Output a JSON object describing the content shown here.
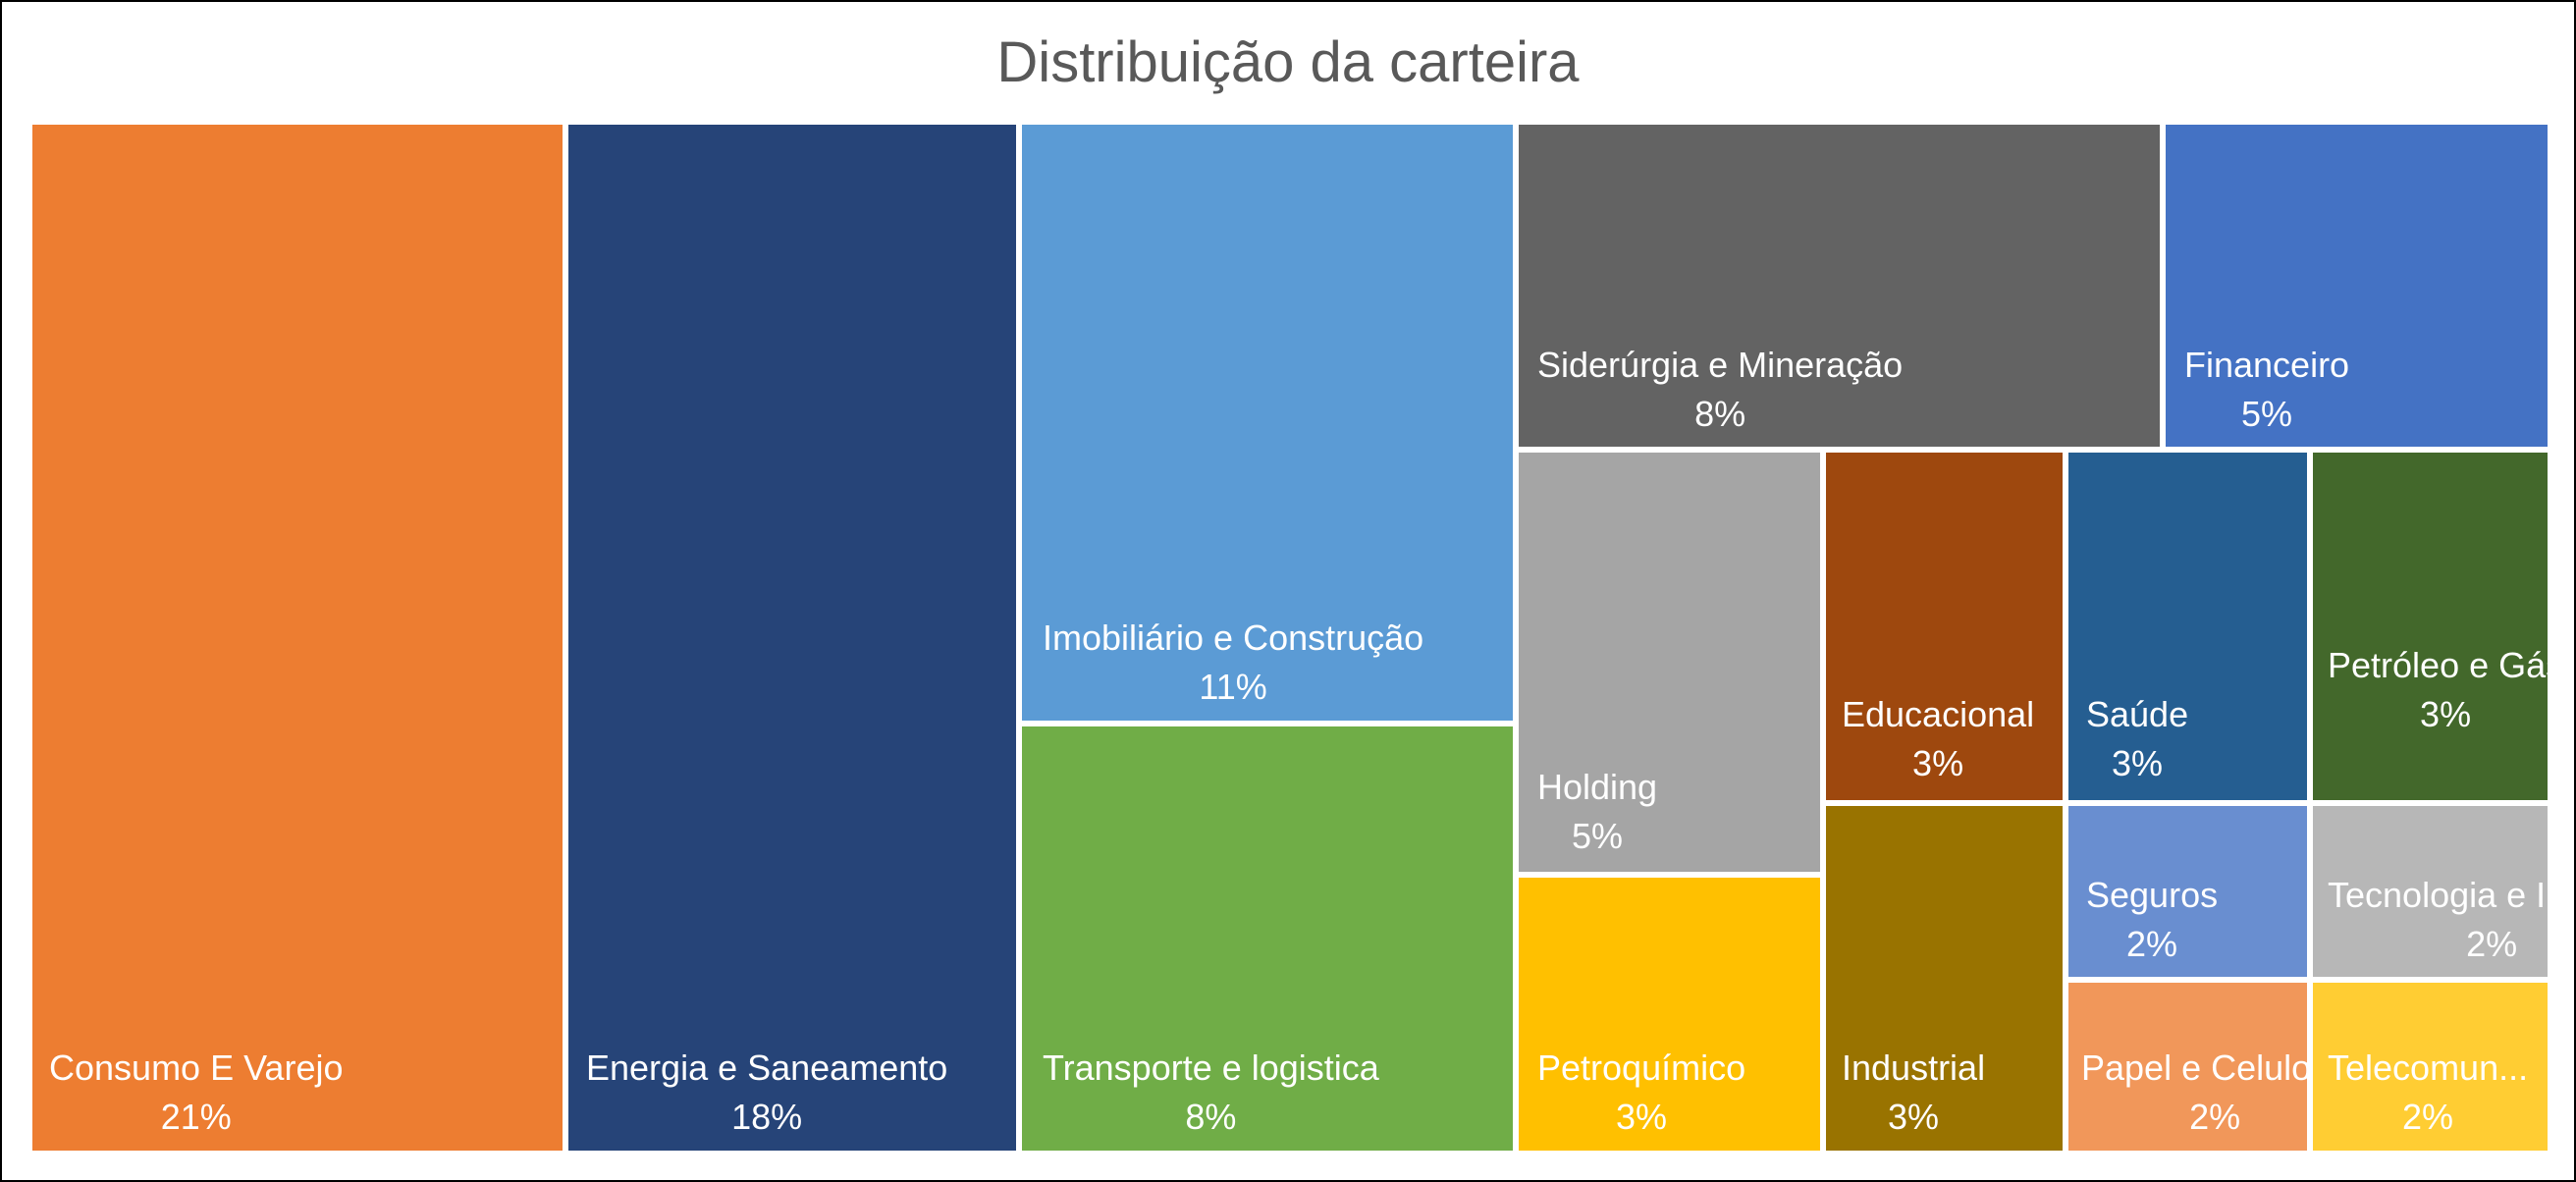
{
  "chart_data": {
    "type": "treemap",
    "title": "Distribuição da carteira",
    "items": [
      {
        "label": "Consumo E Varejo",
        "value": 21,
        "display": "21%",
        "color": "#ED7D31"
      },
      {
        "label": "Energia e Saneamento",
        "value": 18,
        "display": "18%",
        "color": "#264478"
      },
      {
        "label": "Imobiliário e Construção",
        "value": 11,
        "display": "11%",
        "color": "#5B9BD5"
      },
      {
        "label": "Transporte e logistica",
        "value": 8,
        "display": "8%",
        "color": "#70AD47"
      },
      {
        "label": "Siderúrgia e Mineração",
        "value": 8,
        "display": "8%",
        "color": "#636363"
      },
      {
        "label": "Financeiro",
        "value": 5,
        "display": "5%",
        "color": "#4472C4"
      },
      {
        "label": "Holding",
        "value": 5,
        "display": "5%",
        "color": "#A5A5A5"
      },
      {
        "label": "Petroquímico",
        "value": 3,
        "display": "3%",
        "color": "#FFC000"
      },
      {
        "label": "Educacional",
        "value": 3,
        "display": "3%",
        "color": "#9E480E"
      },
      {
        "label": "Industrial",
        "value": 3,
        "display": "3%",
        "color": "#997300"
      },
      {
        "label": "Saúde",
        "value": 3,
        "display": "3%",
        "color": "#255E91"
      },
      {
        "label": "Petróleo e Gás",
        "value": 3,
        "display": "3%",
        "color": "#43682B"
      },
      {
        "label": "Seguros",
        "value": 2,
        "display": "2%",
        "color": "#698ED0"
      },
      {
        "label": "Tecnologia e Internet",
        "value": 2,
        "display": "2%",
        "color": "#B7B7B7"
      },
      {
        "label": "Papel e Celulose",
        "value": 2,
        "display": "2%",
        "color": "#F1975A"
      },
      {
        "label": "Telecomun...",
        "value": 2,
        "display": "2%",
        "color": "#FFCD33"
      }
    ]
  }
}
